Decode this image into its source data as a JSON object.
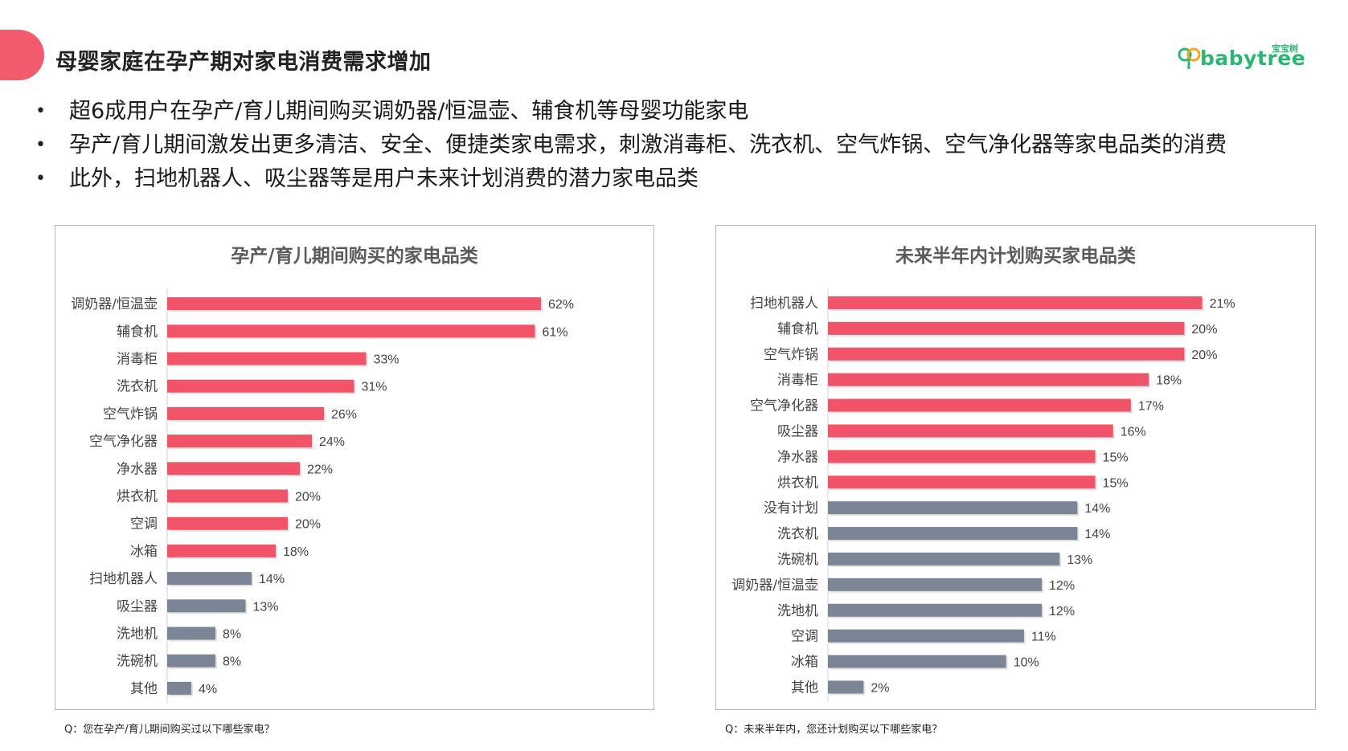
{
  "header": {
    "title": "母婴家庭在孕产期对家电消费需求增加",
    "logo_cn": "宝宝树",
    "logo_text": "babytree"
  },
  "bullets": [
    "超6成用户在孕产/育儿期间购买调奶器/恒温壶、辅食机等母婴功能家电",
    "孕产/育儿期间激发出更多清洁、安全、便捷类家电需求，刺激消毒柜、洗衣机、空气炸锅、空气净化器等家电品类的消费",
    "此外，扫地机器人、吸尘器等是用户未来计划消费的潜力家电品类"
  ],
  "colors": {
    "accent": "#f25b6e",
    "bar_highlight": "#f15468",
    "bar_normal": "#7b8596",
    "brand_green": "#2bb673"
  },
  "chart_data": [
    {
      "type": "bar",
      "orientation": "horizontal",
      "title": "孕产/育儿期间购买的家电品类",
      "categories": [
        "调奶器/恒温壶",
        "辅食机",
        "消毒柜",
        "洗衣机",
        "空气炸锅",
        "空气净化器",
        "净水器",
        "烘衣机",
        "空调",
        "冰箱",
        "扫地机器人",
        "吸尘器",
        "洗地机",
        "洗碗机",
        "其他"
      ],
      "values": [
        62,
        61,
        33,
        31,
        26,
        24,
        22,
        20,
        20,
        18,
        14,
        13,
        8,
        8,
        4
      ],
      "value_labels": [
        "62%",
        "61%",
        "33%",
        "31%",
        "26%",
        "24%",
        "22%",
        "20%",
        "20%",
        "18%",
        "14%",
        "13%",
        "8%",
        "8%",
        "4%"
      ],
      "highlight": [
        true,
        true,
        true,
        true,
        true,
        true,
        true,
        true,
        true,
        true,
        false,
        false,
        false,
        false,
        false
      ],
      "unit": "%",
      "xlim": [
        0,
        70
      ],
      "grid": false,
      "footnote": "Q：您在孕产/育儿期间购买过以下哪些家电？"
    },
    {
      "type": "bar",
      "orientation": "horizontal",
      "title": "未来半年内计划购买家电品类",
      "categories": [
        "扫地机器人",
        "辅食机",
        "空气炸锅",
        "消毒柜",
        "空气净化器",
        "吸尘器",
        "净水器",
        "烘衣机",
        "没有计划",
        "洗衣机",
        "洗碗机",
        "调奶器/恒温壶",
        "洗地机",
        "空调",
        "冰箱",
        "其他"
      ],
      "values": [
        21,
        20,
        20,
        18,
        17,
        16,
        15,
        15,
        14,
        14,
        13,
        12,
        12,
        11,
        10,
        2
      ],
      "value_labels": [
        "21%",
        "20%",
        "20%",
        "18%",
        "17%",
        "16%",
        "15%",
        "15%",
        "14%",
        "14%",
        "13%",
        "12%",
        "12%",
        "11%",
        "10%",
        "2%"
      ],
      "highlight": [
        true,
        true,
        true,
        true,
        true,
        true,
        true,
        true,
        false,
        false,
        false,
        false,
        false,
        false,
        false,
        false
      ],
      "unit": "%",
      "xlim": [
        0,
        23.5
      ],
      "grid": false,
      "footnote": "Q：未来半年内，您还计划购买以下哪些家电？"
    }
  ]
}
